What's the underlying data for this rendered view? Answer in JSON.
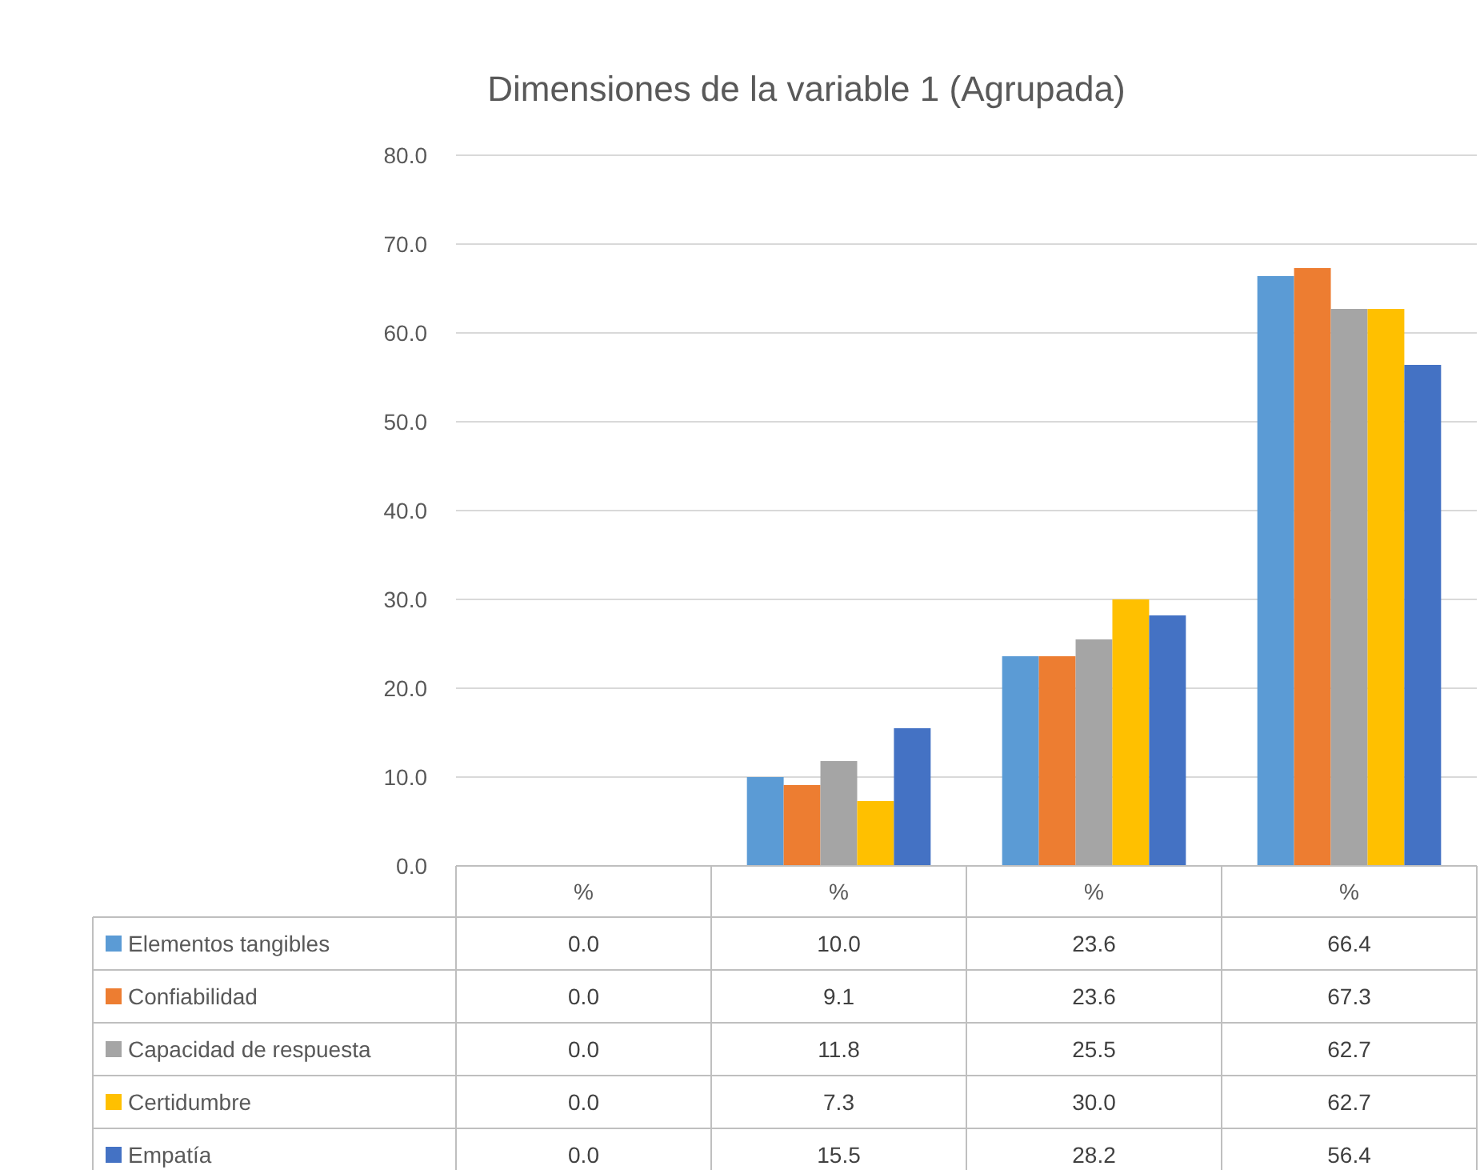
{
  "chart_data": {
    "type": "bar",
    "title": "Dimensiones de la variable 1 (Agrupada)",
    "categories": [
      "%",
      "%",
      "%",
      "%"
    ],
    "ylim": [
      0,
      80
    ],
    "yticks": [
      {
        "value": 0,
        "label": "0.0"
      },
      {
        "value": 10,
        "label": "10.0"
      },
      {
        "value": 20,
        "label": "20.0"
      },
      {
        "value": 30,
        "label": "30.0"
      },
      {
        "value": 40,
        "label": "40.0"
      },
      {
        "value": 50,
        "label": "50.0"
      },
      {
        "value": 60,
        "label": "60.0"
      },
      {
        "value": 70,
        "label": "70.0"
      },
      {
        "value": 80,
        "label": "80.0"
      }
    ],
    "grid": "y",
    "legend": "bottom",
    "series": [
      {
        "name": "Elementos tangibles",
        "color": "#5b9bd5",
        "values": [
          0,
          10.0,
          23.6,
          66.4
        ],
        "value_labels": [
          "0.0",
          "10.0",
          "23.6",
          "66.4"
        ]
      },
      {
        "name": "Confiabilidad",
        "color": "#ed7d31",
        "values": [
          0,
          9.1,
          23.6,
          67.3
        ],
        "value_labels": [
          "0.0",
          "9.1",
          "23.6",
          "67.3"
        ]
      },
      {
        "name": "Capacidad de respuesta",
        "color": "#a5a5a5",
        "values": [
          0,
          11.8,
          25.5,
          62.7
        ],
        "value_labels": [
          "0.0",
          "11.8",
          "25.5",
          "62.7"
        ]
      },
      {
        "name": "Certidumbre",
        "color": "#ffc000",
        "values": [
          0,
          7.3,
          30.0,
          62.7
        ],
        "value_labels": [
          "0.0",
          "7.3",
          "30.0",
          "62.7"
        ]
      },
      {
        "name": "Empatía",
        "color": "#4472c4",
        "values": [
          0,
          15.5,
          28.2,
          56.4
        ],
        "value_labels": [
          "0.0",
          "15.5",
          "28.2",
          "56.4"
        ]
      }
    ]
  }
}
